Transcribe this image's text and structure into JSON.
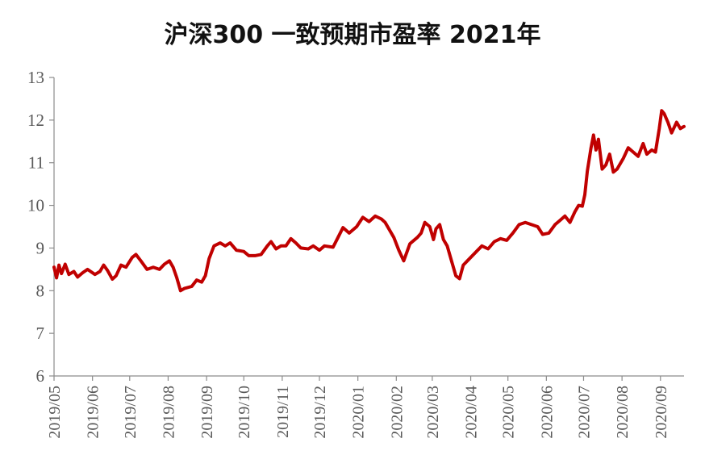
{
  "chart_data": {
    "type": "line",
    "title": "沪深300 一致预期市盈率 2021年",
    "xlabel": "",
    "ylabel": "",
    "ylim": [
      6,
      13
    ],
    "yticks": [
      "6",
      "7",
      "8",
      "9",
      "10",
      "11",
      "12",
      "13"
    ],
    "xlim": [
      "2019-05-01",
      "2020-09-20"
    ],
    "xticks": [
      "2019/05",
      "2019/06",
      "2019/07",
      "2019/08",
      "2019/09",
      "2019/10",
      "2019/11",
      "2019/12",
      "2020/01",
      "2020/02",
      "2020/03",
      "2020/04",
      "2020/05",
      "2020/06",
      "2020/07",
      "2020/08",
      "2020/09"
    ],
    "grid": false,
    "legend": "none",
    "series": [
      {
        "color": "#c00000",
        "points": [
          [
            "2019-05-01",
            8.55
          ],
          [
            "2019-05-03",
            8.3
          ],
          [
            "2019-05-05",
            8.6
          ],
          [
            "2019-05-07",
            8.4
          ],
          [
            "2019-05-10",
            8.62
          ],
          [
            "2019-05-13",
            8.38
          ],
          [
            "2019-05-17",
            8.45
          ],
          [
            "2019-05-20",
            8.32
          ],
          [
            "2019-05-24",
            8.42
          ],
          [
            "2019-05-28",
            8.5
          ],
          [
            "2019-06-03",
            8.38
          ],
          [
            "2019-06-07",
            8.45
          ],
          [
            "2019-06-10",
            8.6
          ],
          [
            "2019-06-13",
            8.48
          ],
          [
            "2019-06-17",
            8.27
          ],
          [
            "2019-06-20",
            8.35
          ],
          [
            "2019-06-24",
            8.6
          ],
          [
            "2019-06-28",
            8.55
          ],
          [
            "2019-07-03",
            8.78
          ],
          [
            "2019-07-06",
            8.85
          ],
          [
            "2019-07-10",
            8.7
          ],
          [
            "2019-07-15",
            8.5
          ],
          [
            "2019-07-20",
            8.55
          ],
          [
            "2019-07-25",
            8.5
          ],
          [
            "2019-07-29",
            8.62
          ],
          [
            "2019-08-02",
            8.7
          ],
          [
            "2019-08-05",
            8.55
          ],
          [
            "2019-08-08",
            8.3
          ],
          [
            "2019-08-11",
            8.0
          ],
          [
            "2019-08-14",
            8.05
          ],
          [
            "2019-08-20",
            8.1
          ],
          [
            "2019-08-24",
            8.25
          ],
          [
            "2019-08-28",
            8.2
          ],
          [
            "2019-08-31",
            8.35
          ],
          [
            "2019-09-03",
            8.75
          ],
          [
            "2019-09-07",
            9.05
          ],
          [
            "2019-09-12",
            9.12
          ],
          [
            "2019-09-16",
            9.05
          ],
          [
            "2019-09-20",
            9.12
          ],
          [
            "2019-09-25",
            8.95
          ],
          [
            "2019-10-01",
            8.92
          ],
          [
            "2019-10-05",
            8.82
          ],
          [
            "2019-10-10",
            8.82
          ],
          [
            "2019-10-15",
            8.85
          ],
          [
            "2019-10-20",
            9.05
          ],
          [
            "2019-10-23",
            9.15
          ],
          [
            "2019-10-27",
            8.98
          ],
          [
            "2019-10-31",
            9.05
          ],
          [
            "2019-11-04",
            9.05
          ],
          [
            "2019-11-08",
            9.22
          ],
          [
            "2019-11-12",
            9.12
          ],
          [
            "2019-11-16",
            9.0
          ],
          [
            "2019-11-22",
            8.98
          ],
          [
            "2019-11-26",
            9.05
          ],
          [
            "2019-12-01",
            8.95
          ],
          [
            "2019-12-05",
            9.05
          ],
          [
            "2019-12-12",
            9.02
          ],
          [
            "2019-12-16",
            9.25
          ],
          [
            "2019-12-20",
            9.48
          ],
          [
            "2019-12-25",
            9.35
          ],
          [
            "2019-12-31",
            9.5
          ],
          [
            "2020-01-05",
            9.72
          ],
          [
            "2020-01-10",
            9.62
          ],
          [
            "2020-01-15",
            9.75
          ],
          [
            "2020-01-20",
            9.68
          ],
          [
            "2020-01-23",
            9.6
          ],
          [
            "2020-01-30",
            9.25
          ],
          [
            "2020-02-03",
            8.95
          ],
          [
            "2020-02-07",
            8.7
          ],
          [
            "2020-02-12",
            9.1
          ],
          [
            "2020-02-18",
            9.25
          ],
          [
            "2020-02-21",
            9.35
          ],
          [
            "2020-02-24",
            9.6
          ],
          [
            "2020-02-28",
            9.5
          ],
          [
            "2020-03-02",
            9.2
          ],
          [
            "2020-03-04",
            9.45
          ],
          [
            "2020-03-07",
            9.55
          ],
          [
            "2020-03-10",
            9.2
          ],
          [
            "2020-03-13",
            9.05
          ],
          [
            "2020-03-17",
            8.65
          ],
          [
            "2020-03-20",
            8.35
          ],
          [
            "2020-03-23",
            8.28
          ],
          [
            "2020-03-26",
            8.6
          ],
          [
            "2020-03-30",
            8.72
          ],
          [
            "2020-04-05",
            8.9
          ],
          [
            "2020-04-10",
            9.05
          ],
          [
            "2020-04-15",
            8.98
          ],
          [
            "2020-04-20",
            9.15
          ],
          [
            "2020-04-25",
            9.22
          ],
          [
            "2020-04-30",
            9.18
          ],
          [
            "2020-05-05",
            9.35
          ],
          [
            "2020-05-10",
            9.55
          ],
          [
            "2020-05-15",
            9.6
          ],
          [
            "2020-05-20",
            9.55
          ],
          [
            "2020-05-25",
            9.5
          ],
          [
            "2020-05-29",
            9.32
          ],
          [
            "2020-06-03",
            9.35
          ],
          [
            "2020-06-08",
            9.55
          ],
          [
            "2020-06-12",
            9.65
          ],
          [
            "2020-06-16",
            9.75
          ],
          [
            "2020-06-20",
            9.6
          ],
          [
            "2020-06-24",
            9.85
          ],
          [
            "2020-06-27",
            10.0
          ],
          [
            "2020-06-30",
            9.98
          ],
          [
            "2020-07-02",
            10.25
          ],
          [
            "2020-07-04",
            10.8
          ],
          [
            "2020-07-07",
            11.35
          ],
          [
            "2020-07-09",
            11.65
          ],
          [
            "2020-07-11",
            11.3
          ],
          [
            "2020-07-13",
            11.55
          ],
          [
            "2020-07-16",
            10.85
          ],
          [
            "2020-07-19",
            10.95
          ],
          [
            "2020-07-22",
            11.2
          ],
          [
            "2020-07-25",
            10.78
          ],
          [
            "2020-07-28",
            10.85
          ],
          [
            "2020-08-02",
            11.1
          ],
          [
            "2020-08-06",
            11.35
          ],
          [
            "2020-08-10",
            11.25
          ],
          [
            "2020-08-14",
            11.15
          ],
          [
            "2020-08-18",
            11.45
          ],
          [
            "2020-08-21",
            11.2
          ],
          [
            "2020-08-25",
            11.3
          ],
          [
            "2020-08-28",
            11.25
          ],
          [
            "2020-08-31",
            11.8
          ],
          [
            "2020-09-02",
            12.22
          ],
          [
            "2020-09-04",
            12.15
          ],
          [
            "2020-09-07",
            11.95
          ],
          [
            "2020-09-10",
            11.7
          ],
          [
            "2020-09-14",
            11.95
          ],
          [
            "2020-09-17",
            11.8
          ],
          [
            "2020-09-20",
            11.85
          ]
        ]
      }
    ]
  }
}
